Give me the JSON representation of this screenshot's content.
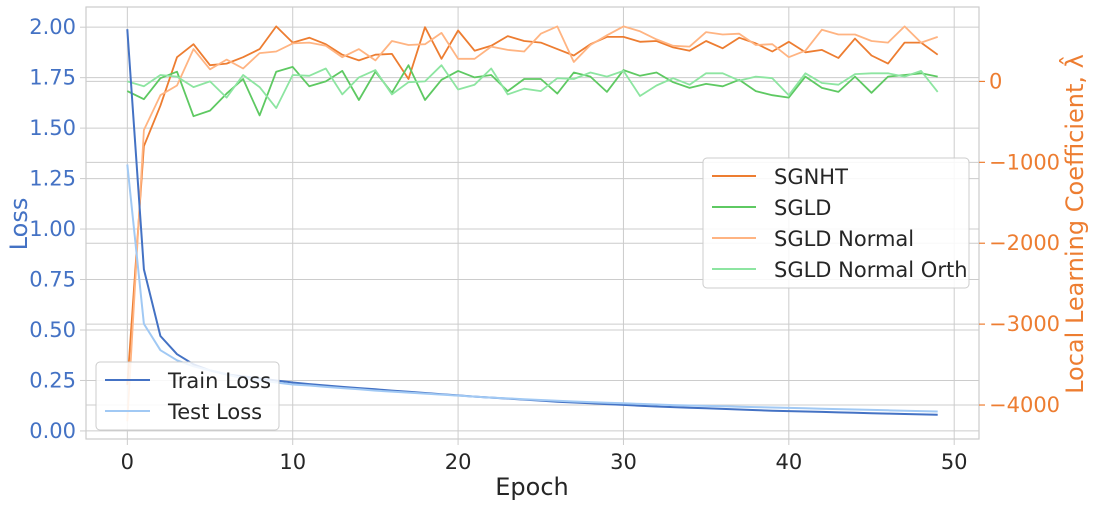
{
  "chart_data": {
    "type": "line",
    "xlabel": "Epoch",
    "ylabel_left": "Loss",
    "ylabel_right": "Local Learning Coefficient, λ̂",
    "x_ticks": [
      "0",
      "10",
      "20",
      "30",
      "40",
      "50"
    ],
    "y_left_ticks": [
      "0.00",
      "0.25",
      "0.50",
      "0.75",
      "1.00",
      "1.25",
      "1.50",
      "1.75",
      "2.00"
    ],
    "y_right_ticks": [
      "0",
      "−1000",
      "−2000",
      "−3000",
      "−4000"
    ],
    "xlim": [
      -2.5,
      51.5
    ],
    "ylim_left": [
      -0.04,
      2.1
    ],
    "ylim_right": [
      -4420,
      920
    ],
    "grid": true,
    "left_legend": {
      "placement": "lower-left"
    },
    "right_legend": {
      "placement": "center-right"
    },
    "left_series": [
      {
        "name": "Train Loss",
        "color": "#4472c4",
        "x": [
          0,
          1,
          2,
          3,
          4,
          5,
          6,
          7,
          8,
          9,
          10,
          11,
          12,
          13,
          14,
          15,
          16,
          17,
          18,
          19,
          20,
          21,
          22,
          23,
          24,
          25,
          26,
          27,
          28,
          29,
          30,
          31,
          32,
          33,
          34,
          35,
          36,
          37,
          38,
          39,
          40,
          41,
          42,
          43,
          44,
          45,
          46,
          47,
          48,
          49
        ],
        "y": [
          1.99,
          0.8,
          0.47,
          0.38,
          0.33,
          0.3,
          0.28,
          0.27,
          0.26,
          0.25,
          0.24,
          0.232,
          0.225,
          0.218,
          0.212,
          0.206,
          0.2,
          0.194,
          0.188,
          0.182,
          0.176,
          0.17,
          0.165,
          0.16,
          0.155,
          0.15,
          0.145,
          0.141,
          0.137,
          0.133,
          0.129,
          0.125,
          0.121,
          0.118,
          0.115,
          0.112,
          0.109,
          0.106,
          0.103,
          0.1,
          0.098,
          0.096,
          0.094,
          0.092,
          0.09,
          0.088,
          0.086,
          0.084,
          0.082,
          0.08
        ]
      },
      {
        "name": "Test Loss",
        "color": "#a1c9f4",
        "x": [
          0,
          1,
          2,
          3,
          4,
          5,
          6,
          7,
          8,
          9,
          10,
          11,
          12,
          13,
          14,
          15,
          16,
          17,
          18,
          19,
          20,
          21,
          22,
          23,
          24,
          25,
          26,
          27,
          28,
          29,
          30,
          31,
          32,
          33,
          34,
          35,
          36,
          37,
          38,
          39,
          40,
          41,
          42,
          43,
          44,
          45,
          46,
          47,
          48,
          49
        ],
        "y": [
          1.32,
          0.53,
          0.4,
          0.35,
          0.32,
          0.3,
          0.28,
          0.26,
          0.25,
          0.24,
          0.23,
          0.225,
          0.218,
          0.212,
          0.206,
          0.2,
          0.195,
          0.19,
          0.185,
          0.18,
          0.175,
          0.17,
          0.165,
          0.161,
          0.157,
          0.153,
          0.149,
          0.146,
          0.143,
          0.14,
          0.137,
          0.134,
          0.131,
          0.128,
          0.126,
          0.124,
          0.122,
          0.12,
          0.118,
          0.116,
          0.114,
          0.112,
          0.11,
          0.108,
          0.106,
          0.104,
          0.102,
          0.1,
          0.098,
          0.096
        ]
      }
    ],
    "right_series": [
      {
        "name": "SGNHT",
        "color": "#ed7d31",
        "x": [
          0,
          1,
          2,
          3,
          4,
          5,
          6,
          7,
          8,
          9,
          10,
          11,
          12,
          13,
          14,
          15,
          16,
          17,
          18,
          19,
          20,
          21,
          22,
          23,
          24,
          25,
          26,
          27,
          28,
          29,
          30,
          31,
          32,
          33,
          34,
          35,
          36,
          37,
          38,
          39,
          40,
          41,
          42,
          43,
          44,
          45,
          46,
          47,
          48,
          49
        ],
        "y": [
          -3750,
          -800,
          -300,
          300,
          460,
          200,
          220,
          300,
          400,
          680,
          480,
          540,
          460,
          330,
          260,
          330,
          340,
          30,
          670,
          280,
          630,
          380,
          440,
          560,
          500,
          480,
          400,
          320,
          460,
          550,
          550,
          490,
          500,
          420,
          380,
          500,
          410,
          540,
          470,
          370,
          490,
          360,
          390,
          290,
          530,
          320,
          220,
          480,
          480,
          330
        ]
      },
      {
        "name": "SGLD",
        "color": "#5ec962",
        "x": [
          0,
          1,
          2,
          3,
          4,
          5,
          6,
          7,
          8,
          9,
          10,
          11,
          12,
          13,
          14,
          15,
          16,
          17,
          18,
          19,
          20,
          21,
          22,
          23,
          24,
          25,
          26,
          27,
          28,
          29,
          30,
          31,
          32,
          33,
          34,
          35,
          36,
          37,
          38,
          39,
          40,
          41,
          42,
          43,
          44,
          45,
          46,
          47,
          48,
          49
        ],
        "y": [
          -120,
          -220,
          40,
          120,
          -430,
          -360,
          -150,
          30,
          -420,
          120,
          180,
          -60,
          0,
          130,
          -230,
          120,
          -140,
          200,
          -230,
          20,
          130,
          50,
          80,
          -120,
          30,
          30,
          -150,
          110,
          60,
          -130,
          140,
          70,
          110,
          -10,
          -80,
          -30,
          -60,
          20,
          -120,
          -170,
          -200,
          60,
          -80,
          -130,
          60,
          -140,
          60,
          80,
          100,
          60
        ]
      },
      {
        "name": "SGLD Normal",
        "color": "#ffb482",
        "x": [
          0,
          1,
          2,
          3,
          4,
          5,
          6,
          7,
          8,
          9,
          10,
          11,
          12,
          13,
          14,
          15,
          16,
          17,
          18,
          19,
          20,
          21,
          22,
          23,
          24,
          25,
          26,
          27,
          28,
          29,
          30,
          31,
          32,
          33,
          34,
          35,
          36,
          37,
          38,
          39,
          40,
          41,
          42,
          43,
          44,
          45,
          46,
          47,
          48,
          49
        ],
        "y": [
          -4200,
          -600,
          -170,
          -50,
          400,
          150,
          270,
          160,
          350,
          370,
          470,
          480,
          440,
          300,
          400,
          260,
          500,
          450,
          460,
          600,
          280,
          280,
          430,
          390,
          370,
          590,
          680,
          240,
          450,
          570,
          680,
          620,
          520,
          440,
          430,
          610,
          580,
          590,
          450,
          460,
          300,
          380,
          640,
          580,
          580,
          500,
          480,
          680,
          480,
          550
        ]
      },
      {
        "name": "SGLD Normal Orth",
        "color": "#8de5a1",
        "x": [
          0,
          1,
          2,
          3,
          4,
          5,
          6,
          7,
          8,
          9,
          10,
          11,
          12,
          13,
          14,
          15,
          16,
          17,
          18,
          19,
          20,
          21,
          22,
          23,
          24,
          25,
          26,
          27,
          28,
          29,
          30,
          31,
          32,
          33,
          34,
          35,
          36,
          37,
          38,
          39,
          40,
          41,
          42,
          43,
          44,
          45,
          46,
          47,
          48,
          49
        ],
        "y": [
          0,
          -60,
          80,
          60,
          -70,
          0,
          -200,
          80,
          -70,
          -330,
          80,
          70,
          160,
          -160,
          50,
          140,
          -160,
          -10,
          0,
          200,
          -100,
          -40,
          160,
          -160,
          -90,
          -120,
          40,
          30,
          110,
          60,
          130,
          -180,
          -50,
          40,
          -40,
          100,
          100,
          10,
          60,
          40,
          -170,
          100,
          -20,
          -40,
          90,
          100,
          100,
          60,
          130,
          -130
        ]
      }
    ]
  }
}
